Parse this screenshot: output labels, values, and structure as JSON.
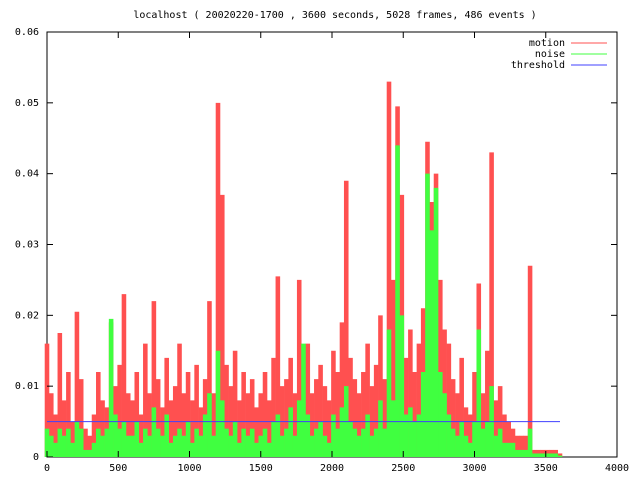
{
  "chart_data": {
    "type": "impulse",
    "title": "localhost ( 20020220-1700 , 3600 seconds, 5028 frames, 486 events )",
    "xlim": [
      0,
      4000
    ],
    "ylim": [
      0,
      0.06
    ],
    "xticks": [
      0,
      500,
      1000,
      1500,
      2000,
      2500,
      3000,
      3500,
      4000
    ],
    "yticks": [
      0,
      0.01,
      0.02,
      0.03,
      0.04,
      0.05,
      0.06
    ],
    "grid": false,
    "legend": "top-right",
    "x": [
      0,
      30,
      60,
      90,
      120,
      150,
      180,
      210,
      240,
      270,
      300,
      330,
      360,
      390,
      420,
      450,
      480,
      510,
      540,
      570,
      600,
      630,
      660,
      690,
      720,
      750,
      780,
      810,
      840,
      870,
      900,
      930,
      960,
      990,
      1020,
      1050,
      1080,
      1110,
      1140,
      1170,
      1200,
      1230,
      1260,
      1290,
      1320,
      1350,
      1380,
      1410,
      1440,
      1470,
      1500,
      1530,
      1560,
      1590,
      1620,
      1650,
      1680,
      1710,
      1740,
      1770,
      1800,
      1830,
      1860,
      1890,
      1920,
      1950,
      1980,
      2010,
      2040,
      2070,
      2100,
      2130,
      2160,
      2190,
      2220,
      2250,
      2280,
      2310,
      2340,
      2370,
      2400,
      2430,
      2460,
      2490,
      2520,
      2550,
      2580,
      2610,
      2640,
      2670,
      2700,
      2730,
      2760,
      2790,
      2820,
      2850,
      2880,
      2910,
      2940,
      2970,
      3000,
      3030,
      3060,
      3090,
      3120,
      3150,
      3180,
      3210,
      3240,
      3270,
      3300,
      3330,
      3360,
      3390,
      3420,
      3450,
      3480,
      3510,
      3540,
      3570,
      3600
    ],
    "series": [
      {
        "name": "motion",
        "color": "#ff5050",
        "style": "impulses",
        "values": [
          0.016,
          0.009,
          0.006,
          0.0175,
          0.008,
          0.012,
          0.005,
          0.0205,
          0.011,
          0.004,
          0.003,
          0.006,
          0.012,
          0.008,
          0.007,
          0.019,
          0.01,
          0.013,
          0.023,
          0.009,
          0.008,
          0.012,
          0.006,
          0.016,
          0.009,
          0.022,
          0.011,
          0.007,
          0.014,
          0.008,
          0.01,
          0.016,
          0.009,
          0.012,
          0.008,
          0.013,
          0.007,
          0.011,
          0.022,
          0.009,
          0.05,
          0.037,
          0.013,
          0.01,
          0.015,
          0.008,
          0.012,
          0.009,
          0.011,
          0.007,
          0.009,
          0.012,
          0.008,
          0.014,
          0.0255,
          0.01,
          0.011,
          0.014,
          0.009,
          0.025,
          0.012,
          0.016,
          0.009,
          0.011,
          0.013,
          0.01,
          0.008,
          0.015,
          0.012,
          0.019,
          0.039,
          0.014,
          0.011,
          0.009,
          0.012,
          0.016,
          0.01,
          0.013,
          0.02,
          0.011,
          0.053,
          0.025,
          0.0495,
          0.037,
          0.014,
          0.018,
          0.012,
          0.016,
          0.021,
          0.0445,
          0.036,
          0.04,
          0.025,
          0.018,
          0.016,
          0.011,
          0.009,
          0.014,
          0.007,
          0.006,
          0.012,
          0.0245,
          0.009,
          0.015,
          0.043,
          0.008,
          0.01,
          0.006,
          0.005,
          0.004,
          0.003,
          0.003,
          0.003,
          0.027,
          0.001,
          0.001,
          0.001,
          0.001,
          0.001,
          0.001,
          0.0005
        ]
      },
      {
        "name": "noise",
        "color": "#40ff40",
        "style": "impulses",
        "values": [
          0.004,
          0.003,
          0.002,
          0.004,
          0.003,
          0.004,
          0.002,
          0.005,
          0.004,
          0.001,
          0.001,
          0.002,
          0.004,
          0.003,
          0.004,
          0.0195,
          0.006,
          0.004,
          0.005,
          0.003,
          0.003,
          0.005,
          0.002,
          0.004,
          0.003,
          0.007,
          0.004,
          0.003,
          0.006,
          0.002,
          0.003,
          0.004,
          0.003,
          0.005,
          0.002,
          0.004,
          0.003,
          0.006,
          0.009,
          0.003,
          0.015,
          0.008,
          0.004,
          0.003,
          0.005,
          0.002,
          0.004,
          0.003,
          0.004,
          0.002,
          0.003,
          0.004,
          0.002,
          0.005,
          0.006,
          0.003,
          0.004,
          0.007,
          0.003,
          0.008,
          0.016,
          0.006,
          0.003,
          0.004,
          0.005,
          0.003,
          0.002,
          0.006,
          0.004,
          0.007,
          0.01,
          0.005,
          0.004,
          0.003,
          0.004,
          0.006,
          0.003,
          0.004,
          0.008,
          0.004,
          0.018,
          0.008,
          0.044,
          0.02,
          0.006,
          0.007,
          0.005,
          0.006,
          0.012,
          0.04,
          0.032,
          0.038,
          0.012,
          0.009,
          0.006,
          0.004,
          0.003,
          0.005,
          0.003,
          0.002,
          0.005,
          0.018,
          0.004,
          0.005,
          0.01,
          0.003,
          0.004,
          0.002,
          0.002,
          0.002,
          0.001,
          0.001,
          0.001,
          0.004,
          0.0005,
          0.0005,
          0.0005,
          0.0005,
          0.0005,
          0.0005,
          0.0002
        ]
      },
      {
        "name": "threshold",
        "color": "#4040ff",
        "style": "line",
        "x": [
          0,
          3600
        ],
        "values": [
          0.005,
          0.005
        ]
      }
    ]
  }
}
